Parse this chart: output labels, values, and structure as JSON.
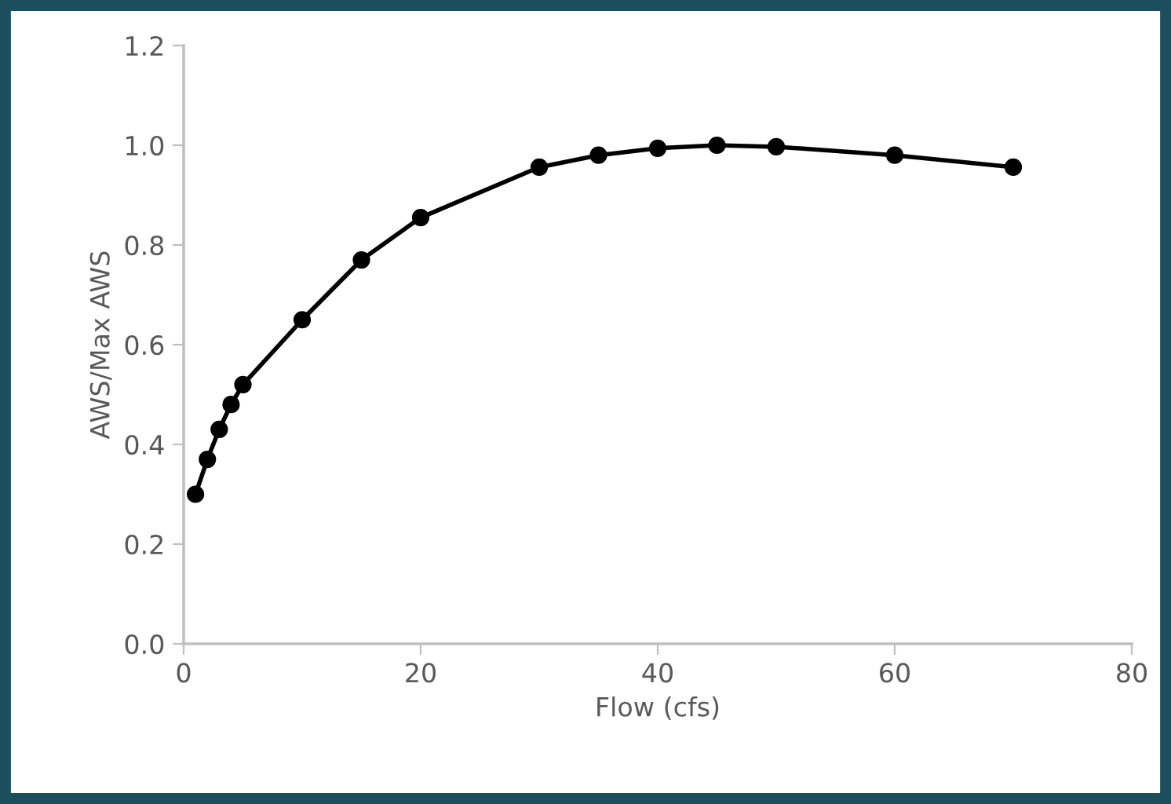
{
  "chart_data": {
    "type": "line",
    "xlabel": "Flow (cfs)",
    "ylabel": "AWS/Max AWS",
    "x": [
      1,
      2,
      3,
      4,
      5,
      10,
      15,
      20,
      30,
      35,
      40,
      45,
      50,
      60,
      70
    ],
    "series": [
      {
        "color": "#000000",
        "values": [
          0.3,
          0.37,
          0.43,
          0.48,
          0.52,
          0.65,
          0.77,
          0.855,
          0.956,
          0.98,
          0.994,
          1.0,
          0.997,
          0.98,
          0.956
        ]
      }
    ],
    "xlim": [
      0,
      80
    ],
    "xticks": [
      0,
      20,
      40,
      60,
      80
    ],
    "ylim": [
      0,
      1.2
    ],
    "yticks": [
      {
        "value": 0,
        "label": "0.0"
      },
      {
        "value": 0.2,
        "label": "0.2"
      },
      {
        "value": 0.4,
        "label": "0.4"
      },
      {
        "value": 0.6,
        "label": "0.6"
      },
      {
        "value": 0.8,
        "label": "0.8"
      },
      {
        "value": 1.0,
        "label": "1.0"
      },
      {
        "value": 1.2,
        "label": "1.2"
      }
    ],
    "grid": false,
    "legend": false,
    "marker": "circle",
    "line_style": "solid"
  }
}
